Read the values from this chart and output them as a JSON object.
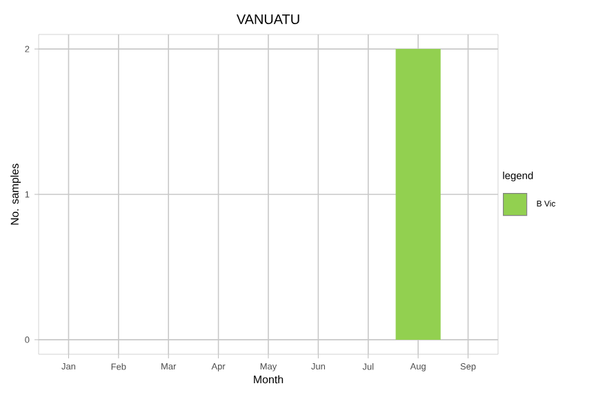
{
  "chart_data": {
    "type": "bar",
    "title": "VANUATU",
    "xlabel": "Month",
    "ylabel": "No. samples",
    "legend_title": "legend",
    "categories": [
      "Jan",
      "Feb",
      "Mar",
      "Apr",
      "May",
      "Jun",
      "Jul",
      "Aug",
      "Sep"
    ],
    "series": [
      {
        "name": "B Vic",
        "color": "#92d050",
        "values": [
          0,
          0,
          0,
          0,
          0,
          0,
          0,
          2,
          0
        ]
      }
    ],
    "ylim": [
      -0.1,
      2.1
    ],
    "yticks": [
      0,
      1,
      2
    ],
    "grid": true,
    "legend": "right"
  }
}
